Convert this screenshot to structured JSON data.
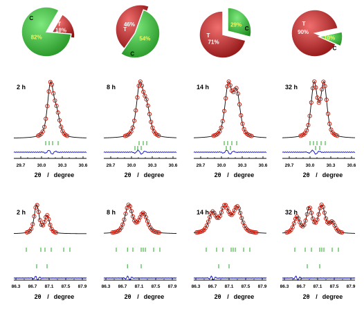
{
  "colors": {
    "C_light": "#7de87d",
    "C_dark": "#1f8f1f",
    "T_light": "#f06e6e",
    "T_dark": "#8a0f0f",
    "pct_on_green": "#f5f55a",
    "pct_on_red": "#ffffff",
    "obs": "#cc1100",
    "calc": "#000000",
    "diff": "#0000cc",
    "ticks": "#22aa22",
    "axis": "#000000"
  },
  "chart_data": [
    {
      "type": "pie",
      "panel": "a",
      "slices": [
        {
          "label": "C",
          "value": 82
        },
        {
          "label": "T",
          "value": 18
        }
      ],
      "pct_labels": [
        "82%",
        "18%"
      ]
    },
    {
      "type": "pie",
      "panel": "b",
      "slices": [
        {
          "label": "C",
          "value": 54
        },
        {
          "label": "T",
          "value": 46
        }
      ],
      "pct_labels": [
        "54%",
        "46%"
      ]
    },
    {
      "type": "pie",
      "panel": "c",
      "slices": [
        {
          "label": "C",
          "value": 29
        },
        {
          "label": "T",
          "value": 71
        }
      ],
      "pct_labels": [
        "29%",
        "71%"
      ]
    },
    {
      "type": "pie",
      "panel": "d",
      "slices": [
        {
          "label": "C",
          "value": 10
        },
        {
          "label": "T",
          "value": 90
        }
      ],
      "pct_labels": [
        "10%",
        "90%"
      ]
    },
    {
      "type": "line",
      "panel": "low-2h",
      "time_label": "2 h",
      "xlim": [
        29.6,
        30.65
      ],
      "xticks": [
        29.7,
        30.0,
        30.3,
        30.6
      ],
      "minor_xticks": [
        29.8,
        29.9,
        30.1,
        30.2,
        30.4,
        30.5
      ],
      "xtick_labels": [
        "29.7",
        "30.0",
        "30.3",
        "30.6"
      ],
      "xlabel_sym": "2θ",
      "xlabel_sep": "/",
      "xlabel_unit": "degree",
      "peaks": [
        {
          "x0": 30.13,
          "amp": 1.0,
          "w": 0.045
        },
        {
          "x0": 30.22,
          "amp": 0.4,
          "w": 0.045
        }
      ],
      "ticks_row1": [
        30.06,
        30.11,
        30.16,
        30.24
      ],
      "ticks_row2": []
    },
    {
      "type": "line",
      "panel": "low-8h",
      "time_label": "8 h",
      "xlim": [
        29.6,
        30.65
      ],
      "xticks": [
        29.7,
        30.0,
        30.3,
        30.6
      ],
      "minor_xticks": [
        29.8,
        29.9,
        30.1,
        30.2,
        30.4,
        30.5
      ],
      "xtick_labels": [
        "29.7",
        "30.0",
        "30.3",
        "30.6"
      ],
      "xlabel_sym": "2θ",
      "xlabel_sep": "/",
      "xlabel_unit": "degree",
      "peaks": [
        {
          "x0": 30.12,
          "amp": 1.0,
          "w": 0.05
        },
        {
          "x0": 30.22,
          "amp": 0.55,
          "w": 0.05
        }
      ],
      "ticks_row1": [
        30.11,
        30.17,
        30.22
      ],
      "ticks_row2": [
        30.05,
        30.09,
        30.14
      ]
    },
    {
      "type": "line",
      "panel": "low-14h",
      "time_label": "14 h",
      "xlim": [
        29.6,
        30.65
      ],
      "xticks": [
        29.7,
        30.0,
        30.3,
        30.6
      ],
      "minor_xticks": [
        29.8,
        29.9,
        30.1,
        30.2,
        30.4,
        30.5
      ],
      "xtick_labels": [
        "29.7",
        "30.0",
        "30.3",
        "30.6"
      ],
      "xlabel_sym": "2θ",
      "xlabel_sep": "/",
      "xlabel_unit": "degree",
      "peaks": [
        {
          "x0": 30.1,
          "amp": 1.0,
          "w": 0.05
        },
        {
          "x0": 30.22,
          "amp": 0.85,
          "w": 0.05
        }
      ],
      "ticks_row1": [
        30.04,
        30.09,
        30.15,
        30.22
      ],
      "ticks_row2": [
        30.07,
        30.13
      ]
    },
    {
      "type": "line",
      "panel": "low-32h",
      "time_label": "32 h",
      "xlim": [
        29.6,
        30.65
      ],
      "xticks": [
        29.7,
        30.0,
        30.3,
        30.6
      ],
      "minor_xticks": [
        29.8,
        29.9,
        30.1,
        30.2,
        30.4,
        30.5
      ],
      "xtick_labels": [
        "29.7",
        "30.0",
        "30.3",
        "30.6"
      ],
      "xlabel_sym": "2θ",
      "xlabel_sep": "/",
      "xlabel_unit": "degree",
      "peaks": [
        {
          "x0": 30.06,
          "amp": 0.95,
          "w": 0.045
        },
        {
          "x0": 30.2,
          "amp": 0.95,
          "w": 0.045
        }
      ],
      "ticks_row1": [
        30.0,
        30.05,
        30.1,
        30.16,
        30.22
      ],
      "ticks_row2": [
        30.08,
        30.14
      ]
    },
    {
      "type": "line",
      "panel": "high-2h",
      "time_label": "2 h",
      "xlim": [
        86.25,
        88.0
      ],
      "xticks": [
        86.3,
        86.7,
        87.1,
        87.5,
        87.9
      ],
      "minor_xticks": [
        86.5,
        86.9,
        87.3,
        87.7
      ],
      "xtick_labels": [
        "86.3",
        "86.7",
        "87.1",
        "87.5",
        "87.9"
      ],
      "xlabel_sym": "2θ",
      "xlabel_sep": "/",
      "xlabel_unit": "degree",
      "peaks": [
        {
          "x0": 86.8,
          "amp": 1.0,
          "w": 0.06
        },
        {
          "x0": 87.05,
          "amp": 0.62,
          "w": 0.06
        }
      ],
      "ticks_row1": [
        86.55,
        86.9,
        87.0,
        87.15,
        87.45,
        87.6
      ],
      "ticks_row2": [
        86.8,
        87.05
      ]
    },
    {
      "type": "line",
      "panel": "high-8h",
      "time_label": "8 h",
      "xlim": [
        86.25,
        88.0
      ],
      "xticks": [
        86.3,
        86.7,
        87.1,
        87.5,
        87.9
      ],
      "minor_xticks": [
        86.5,
        86.9,
        87.3,
        87.7
      ],
      "xtick_labels": [
        "86.3",
        "86.7",
        "87.1",
        "87.5",
        "87.9"
      ],
      "xlabel_sym": "2θ",
      "xlabel_sep": "/",
      "xlabel_unit": "degree",
      "peaks": [
        {
          "x0": 86.85,
          "amp": 0.85,
          "w": 0.09
        },
        {
          "x0": 87.2,
          "amp": 0.6,
          "w": 0.1
        }
      ],
      "ticks_row1": [
        86.55,
        86.82,
        86.95,
        87.15,
        87.2,
        87.25,
        87.45,
        87.6
      ],
      "ticks_row2": [
        86.82,
        87.15
      ]
    },
    {
      "type": "line",
      "panel": "high-14h",
      "time_label": "14 h",
      "xlim": [
        86.25,
        88.0
      ],
      "xticks": [
        86.3,
        86.7,
        87.1,
        87.5,
        87.9
      ],
      "minor_xticks": [
        86.5,
        86.9,
        87.3,
        87.7
      ],
      "xtick_labels": [
        "86.3",
        "86.7",
        "87.1",
        "87.5",
        "87.9"
      ],
      "xlabel_sym": "2θ",
      "xlabel_sep": "/",
      "xlabel_unit": "degree",
      "peaks": [
        {
          "x0": 86.7,
          "amp": 0.55,
          "w": 0.09
        },
        {
          "x0": 87.0,
          "amp": 0.72,
          "w": 0.1
        },
        {
          "x0": 87.3,
          "amp": 0.7,
          "w": 0.1
        }
      ],
      "ticks_row1": [
        86.55,
        86.8,
        86.95,
        87.15,
        87.2,
        87.25,
        87.45,
        87.6
      ],
      "ticks_row2": [
        86.85,
        87.1
      ]
    },
    {
      "type": "line",
      "panel": "high-32h",
      "time_label": "32 h",
      "xlim": [
        86.25,
        88.0
      ],
      "xticks": [
        86.3,
        86.7,
        87.1,
        87.5,
        87.9
      ],
      "minor_xticks": [
        86.5,
        86.9,
        87.3,
        87.7
      ],
      "xtick_labels": [
        "86.3",
        "86.7",
        "87.1",
        "87.5",
        "87.9"
      ],
      "xlabel_sym": "2θ",
      "xlabel_sep": "/",
      "xlabel_unit": "degree",
      "peaks": [
        {
          "x0": 86.6,
          "amp": 0.55,
          "w": 0.07
        },
        {
          "x0": 86.9,
          "amp": 0.85,
          "w": 0.07
        },
        {
          "x0": 87.2,
          "amp": 0.95,
          "w": 0.08
        },
        {
          "x0": 87.45,
          "amp": 0.35,
          "w": 0.07
        }
      ],
      "ticks_row1": [
        86.55,
        86.8,
        86.95,
        87.15,
        87.2,
        87.25,
        87.45,
        87.6
      ],
      "ticks_row2": [
        86.85,
        87.15
      ]
    }
  ]
}
